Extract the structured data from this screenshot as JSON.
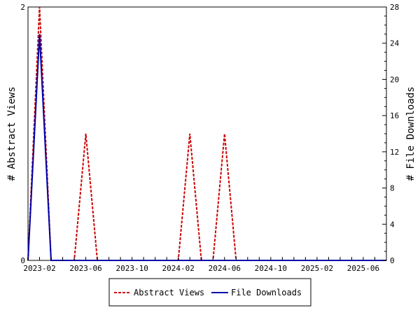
{
  "chart_data": {
    "type": "line",
    "title": "",
    "xlabel": "",
    "ylabel_left": "# Abstract Views",
    "ylabel_right": "# File Downloads",
    "ylim_left": [
      0,
      2
    ],
    "ylim_right": [
      0,
      28
    ],
    "y_ticks_left": [
      "0",
      "2"
    ],
    "y_ticks_right": [
      "0",
      "4",
      "8",
      "12",
      "16",
      "20",
      "24",
      "28"
    ],
    "x_tick_labels": [
      "2023-02",
      "2023-06",
      "2023-10",
      "2024-02",
      "2024-06",
      "2024-10",
      "2025-02",
      "2025-06"
    ],
    "x_months": [
      "2023-01",
      "2023-02",
      "2023-03",
      "2023-04",
      "2023-05",
      "2023-06",
      "2023-07",
      "2023-08",
      "2023-09",
      "2023-10",
      "2023-11",
      "2023-12",
      "2024-01",
      "2024-02",
      "2024-03",
      "2024-04",
      "2024-05",
      "2024-06",
      "2024-07",
      "2024-08",
      "2024-09",
      "2024-10",
      "2024-11",
      "2024-12",
      "2025-01",
      "2025-02",
      "2025-03",
      "2025-04",
      "2025-05",
      "2025-06",
      "2025-07",
      "2025-08"
    ],
    "series": [
      {
        "name": "Abstract Views",
        "axis": "left",
        "color": "#cc0000",
        "dash": true,
        "values": [
          0,
          2,
          0,
          0,
          0,
          1,
          0,
          0,
          0,
          0,
          0,
          0,
          0,
          0,
          1,
          0,
          0,
          1,
          0,
          0,
          0,
          0,
          0,
          0,
          0,
          0,
          0,
          0,
          0,
          0,
          0,
          0
        ]
      },
      {
        "name": "File Downloads",
        "axis": "right",
        "color": "#0000aa",
        "dash": false,
        "values": [
          0,
          25,
          0,
          0,
          0,
          0,
          0,
          0,
          0,
          0,
          0,
          0,
          0,
          0,
          0,
          0,
          0,
          0,
          0,
          0,
          0,
          0,
          0,
          0,
          0,
          0,
          0,
          0,
          0,
          0,
          0,
          0
        ]
      }
    ],
    "legend": [
      "Abstract Views",
      "File Downloads"
    ],
    "legend_position": "bottom-center",
    "grid": false
  }
}
